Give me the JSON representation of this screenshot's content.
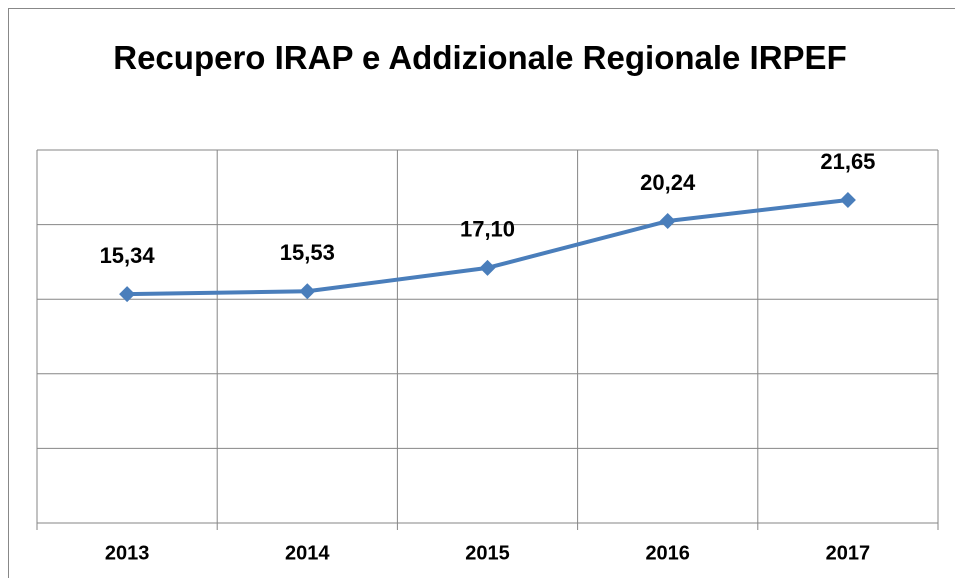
{
  "chart_data": {
    "type": "line",
    "title": "Recupero IRAP e Addizionale Regionale IRPEF",
    "categories": [
      "2013",
      "2014",
      "2015",
      "2016",
      "2017"
    ],
    "series": [
      {
        "color": "#4a7ebb",
        "values": [
          15.34,
          15.53,
          17.1,
          20.24,
          21.65
        ],
        "value_labels": [
          "15,34",
          "15,53",
          "17,10",
          "20,24",
          "21,65"
        ]
      }
    ],
    "ylim": [
      0,
      25
    ],
    "yticks": [
      0,
      5,
      10,
      15,
      20,
      25
    ],
    "grid": true
  }
}
